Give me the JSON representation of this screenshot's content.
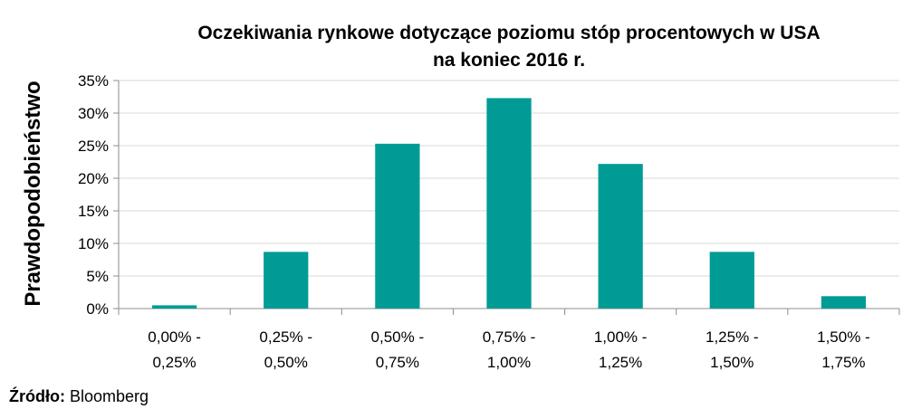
{
  "chart_data": {
    "type": "bar",
    "title_line1": "Oczekiwania rynkowe dotyczące poziomu stóp procentowych w USA",
    "title_line2": "na koniec 2016 r.",
    "ylabel": "Prawdopodobieństwo",
    "xlabel": "",
    "categories": [
      [
        "0,00% -",
        "0,25%"
      ],
      [
        "0,25% -",
        "0,50%"
      ],
      [
        "0,50% -",
        "0,75%"
      ],
      [
        "0,75% -",
        "1,00%"
      ],
      [
        "1,00% -",
        "1,25%"
      ],
      [
        "1,25% -",
        "1,50%"
      ],
      [
        "1,50% -",
        "1,75%"
      ]
    ],
    "values": [
      0.5,
      8.7,
      25.3,
      32.3,
      22.2,
      8.7,
      1.9
    ],
    "ylim": [
      0,
      35
    ],
    "yticks": [
      0,
      5,
      10,
      15,
      20,
      25,
      30,
      35
    ],
    "ytick_labels": [
      "0%",
      "5%",
      "10%",
      "15%",
      "20%",
      "25%",
      "30%",
      "35%"
    ],
    "bar_color": "#009b95",
    "grid": true,
    "grid_color": "#d9d9d9",
    "legend": false
  },
  "source": {
    "label": "Źródło:",
    "value": " Bloomberg"
  }
}
